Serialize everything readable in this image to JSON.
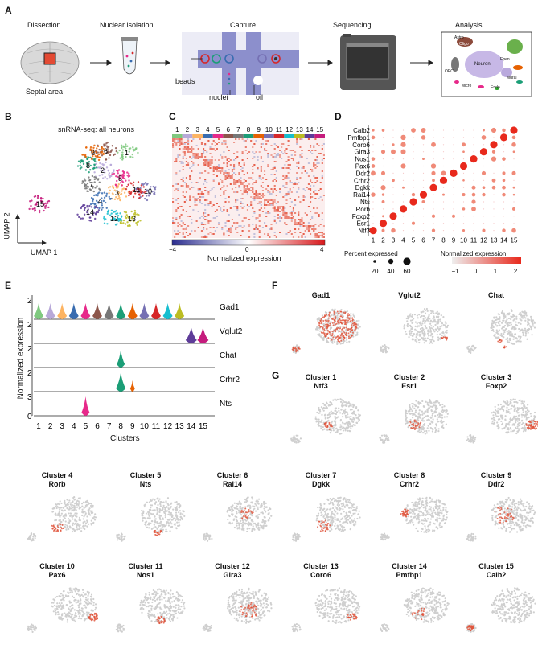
{
  "panels": {
    "A": "A",
    "B": "B",
    "C": "C",
    "D": "D",
    "E": "E",
    "F": "F",
    "G": "G"
  },
  "panelA": {
    "steps": [
      "Dissection",
      "Nuclear isolation",
      "Capture",
      "Sequencing",
      "Analysis"
    ],
    "septal_label": "Septal area",
    "beads_label": "beads",
    "nuclei_label": "nuclei",
    "oil_label": "oil",
    "analysis_labels": [
      "Astro",
      "Oligo",
      "Neuron",
      "Epen",
      "OPC",
      "Mural",
      "Micro",
      "Endo"
    ]
  },
  "panelB": {
    "title": "snRNA-seq: all neurons",
    "axis_y": "UMAP 2",
    "axis_x": "UMAP 1",
    "cluster_labels": [
      "1",
      "2",
      "3",
      "4",
      "5",
      "6",
      "7",
      "8",
      "9",
      "10",
      "11",
      "12",
      "13",
      "14",
      "15"
    ]
  },
  "panelC": {
    "cluster_labels": [
      "1",
      "2",
      "3",
      "4",
      "5",
      "6",
      "7",
      "8",
      "9",
      "10",
      "11",
      "12",
      "13",
      "14",
      "15"
    ],
    "colorbar_min": "−4",
    "colorbar_mid": "0",
    "colorbar_max": "4",
    "colorbar_label": "Normalized expression"
  },
  "panelD": {
    "genes": [
      "Calb2",
      "Pmfbp1",
      "Coro6",
      "Glra3",
      "Nos1",
      "Pax6",
      "Ddr2",
      "Crhr2",
      "Dgkk",
      "Rai14",
      "Nts",
      "Rorb",
      "Foxp2",
      "Esr1",
      "Ntf3"
    ],
    "clusters": [
      "1",
      "2",
      "3",
      "4",
      "5",
      "6",
      "7",
      "8",
      "9",
      "10",
      "11",
      "12",
      "13",
      "14",
      "15"
    ],
    "size_legend_title": "Percent expressed",
    "size_legend_values": [
      "20",
      "40",
      "60"
    ],
    "color_legend_title": "Normalized expression",
    "color_legend_ticks": [
      "−1",
      "0",
      "1",
      "2"
    ]
  },
  "panelE": {
    "genes": [
      "Gad1",
      "Vglut2",
      "Chat",
      "Crhr2",
      "Nts"
    ],
    "ytick_top": [
      "2",
      "2",
      "2",
      "2",
      "3"
    ],
    "ytick_bottom": "0",
    "ylabel": "Normalized expression",
    "xlabel": "Clusters",
    "clusters": [
      "1",
      "2",
      "3",
      "4",
      "5",
      "6",
      "7",
      "8",
      "9",
      "10",
      "11",
      "12",
      "13",
      "14",
      "15"
    ]
  },
  "panelF": {
    "titles": [
      "Gad1",
      "Vglut2",
      "Chat"
    ]
  },
  "panelG": {
    "items": [
      {
        "cluster": "Cluster 1",
        "gene": "Ntf3"
      },
      {
        "cluster": "Cluster 2",
        "gene": "Esr1"
      },
      {
        "cluster": "Cluster 3",
        "gene": "Foxp2"
      },
      {
        "cluster": "Cluster 4",
        "gene": "Rorb"
      },
      {
        "cluster": "Cluster 5",
        "gene": "Nts"
      },
      {
        "cluster": "Cluster 6",
        "gene": "Rai14"
      },
      {
        "cluster": "Cluster 7",
        "gene": "Dgkk"
      },
      {
        "cluster": "Cluster 8",
        "gene": "Crhr2"
      },
      {
        "cluster": "Cluster 9",
        "gene": "Ddr2"
      },
      {
        "cluster": "Cluster 10",
        "gene": "Pax6"
      },
      {
        "cluster": "Cluster 11",
        "gene": "Nos1"
      },
      {
        "cluster": "Cluster 12",
        "gene": "Glra3"
      },
      {
        "cluster": "Cluster 13",
        "gene": "Coro6"
      },
      {
        "cluster": "Cluster 14",
        "gene": "Pmfbp1"
      },
      {
        "cluster": "Cluster 15",
        "gene": "Calb2"
      }
    ]
  },
  "colors": {
    "cluster_palette": [
      "#7fc97f",
      "#b8a9d9",
      "#fdb462",
      "#386cb0",
      "#e7298a",
      "#8c564b",
      "#777777",
      "#1b9e77",
      "#e66101",
      "#7570b3",
      "#d62728",
      "#17becf",
      "#bcbd22",
      "#5e3c99",
      "#c51b7d"
    ],
    "heat_low": "#2b2d8f",
    "heat_high": "#d7191c",
    "umap_gray": "#cfcfcf",
    "umap_red": "#e0533a"
  }
}
